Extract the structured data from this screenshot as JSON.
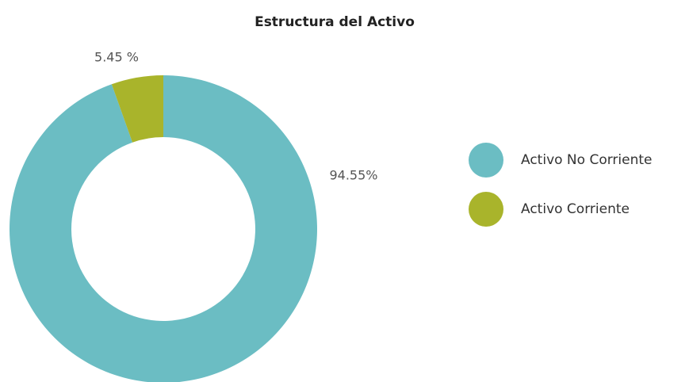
{
  "chart_data": {
    "type": "donut",
    "title": "Estructura del Activo",
    "categories": [
      "Activo No Corriente",
      "Activo Corriente"
    ],
    "values": [
      94.55,
      5.45
    ],
    "value_labels": [
      "94.55%",
      "5.45 %"
    ],
    "colors": [
      "#6bbdc3",
      "#a9b42b"
    ]
  }
}
